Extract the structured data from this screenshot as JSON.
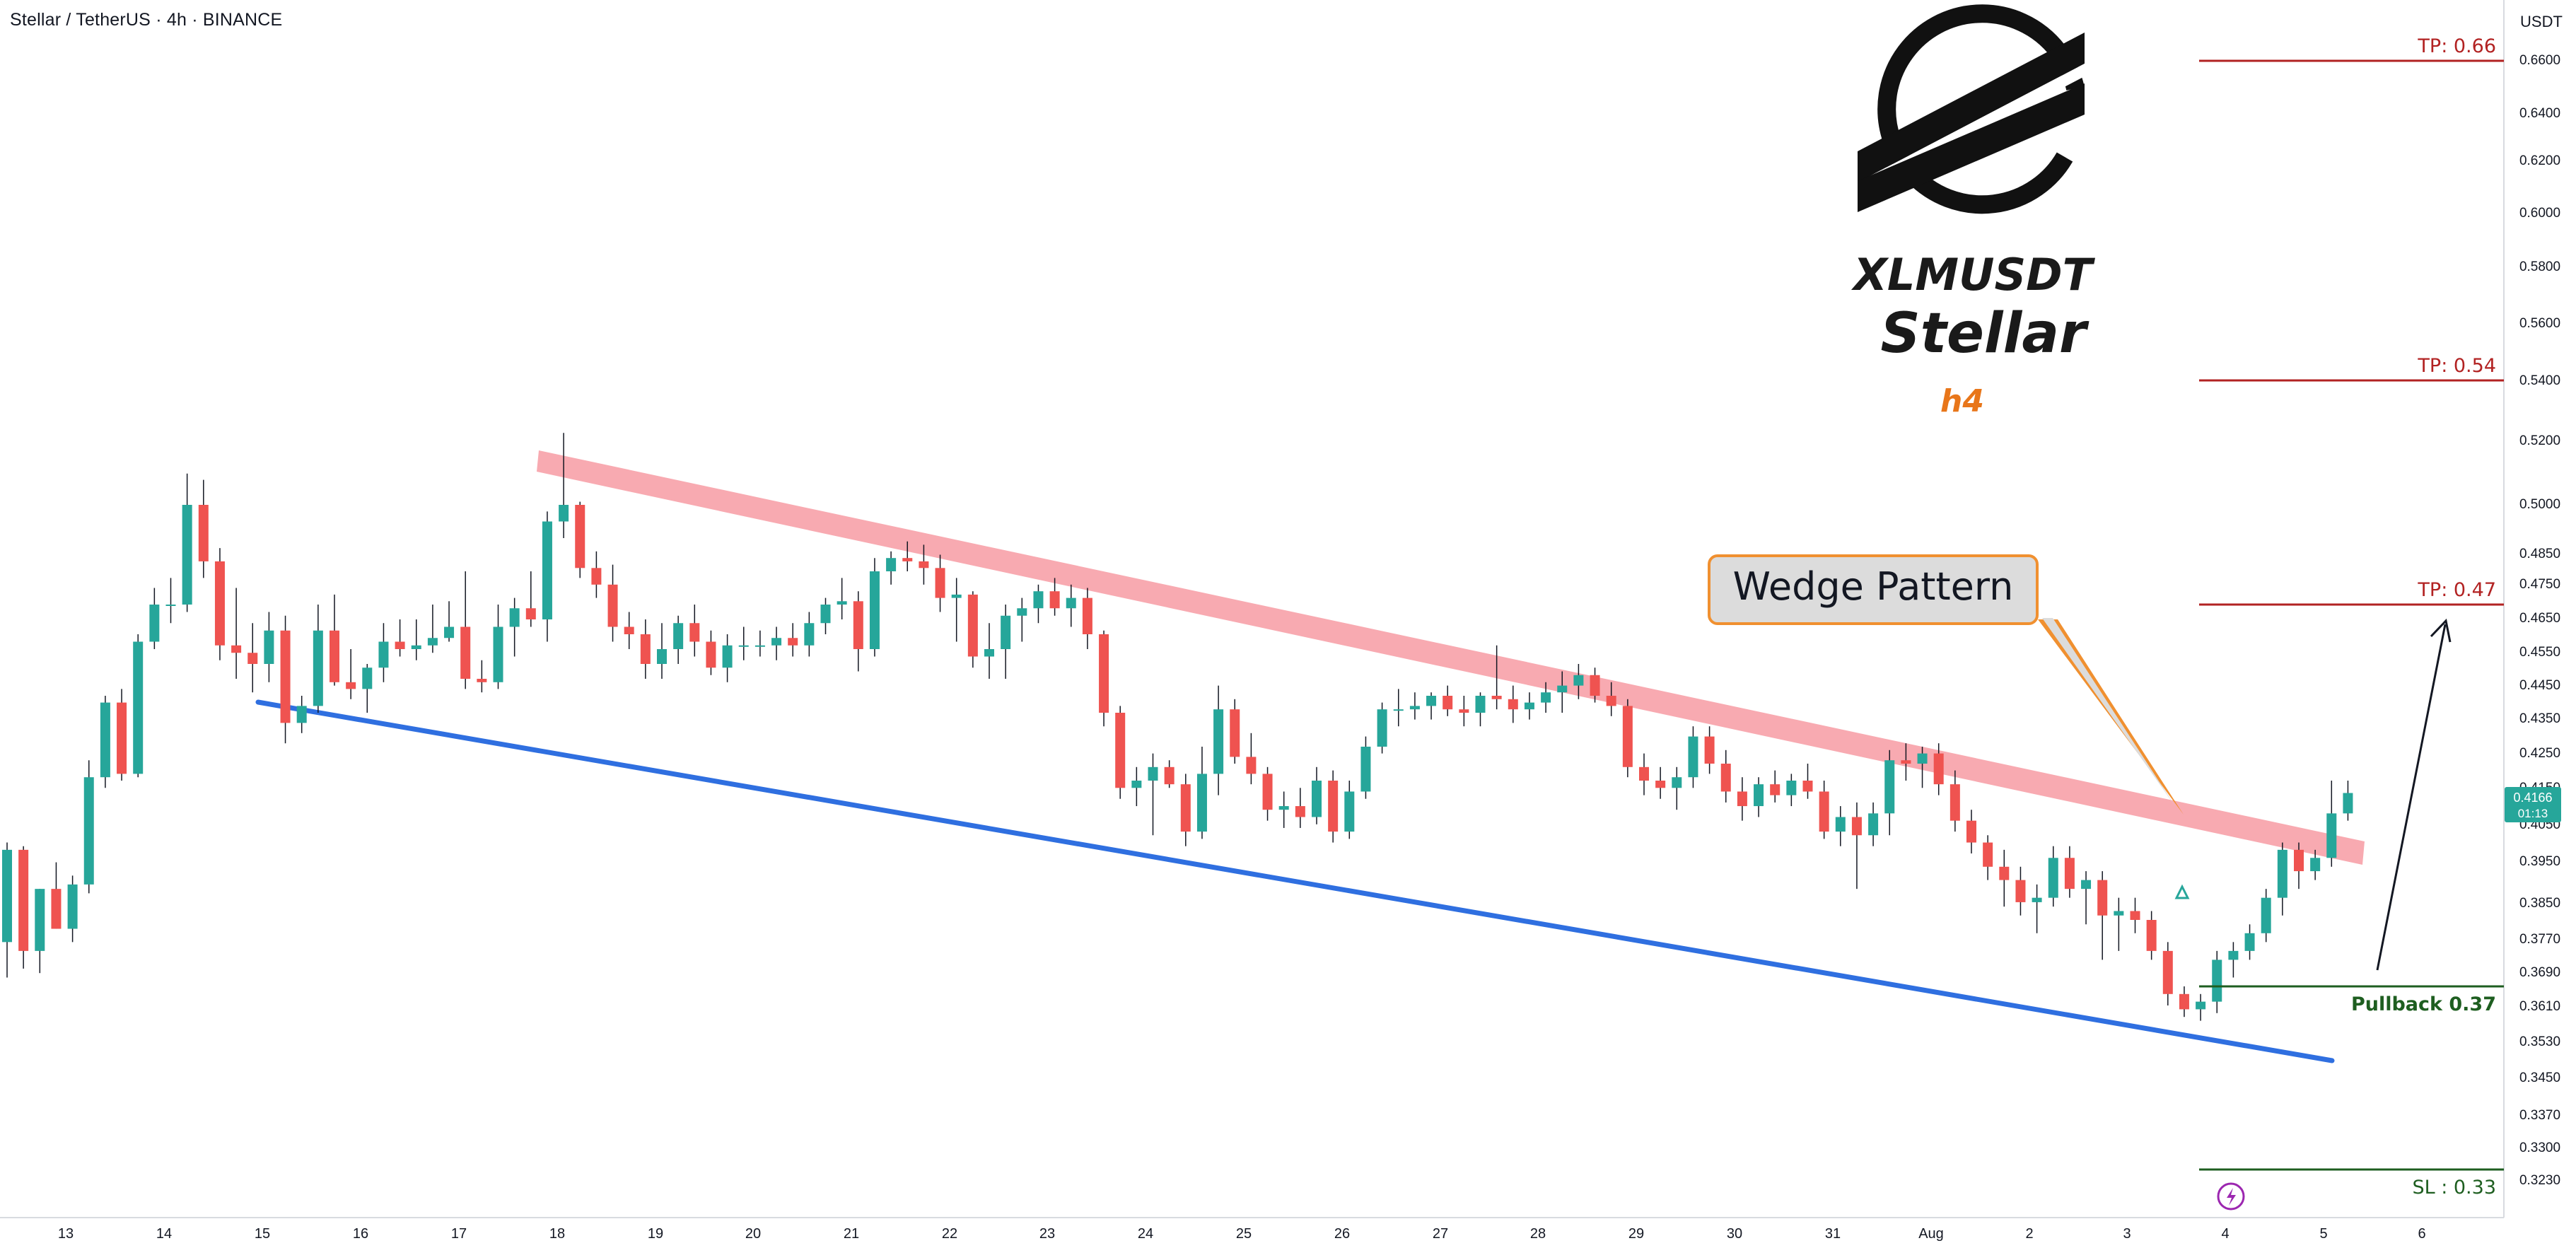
{
  "header": {
    "title": "Stellar / TetherUS · 4h · BINANCE"
  },
  "axis": {
    "unit_label": "USDT"
  },
  "branding": {
    "symbol": "XLMUSDT",
    "name": "Stellar",
    "timeframe": "h4"
  },
  "annotation": {
    "pattern_label": "Wedge Pattern"
  },
  "price_tag": {
    "price": "0.4166",
    "countdown": "01:13"
  },
  "levels": [
    {
      "label": "TP: 0.66",
      "price": 0.66,
      "color": "#b22222"
    },
    {
      "label": "TP: 0.54",
      "price": 0.54,
      "color": "#b22222"
    },
    {
      "label": "TP: 0.47",
      "price": 0.47,
      "color": "#b22222"
    },
    {
      "label": "Pullback 0.37",
      "price": 0.3705,
      "color": "#1e5e20"
    },
    {
      "label": "SL : 0.33",
      "price": 0.33,
      "color": "#1e5e20"
    }
  ],
  "colors": {
    "up": "#26a69a",
    "down": "#ef5350",
    "wedge_upper": "#f7a1a8",
    "wedge_lower": "#2f6fe0",
    "tp": "#b22222",
    "sl": "#1e5e20",
    "accent_orange": "#e8761a"
  },
  "chart_data": {
    "type": "candlestick",
    "title": "Stellar / TetherUS · 4h · BINANCE",
    "symbol": "XLMUSDT",
    "timeframe": "4h",
    "y_axis": {
      "label": "USDT",
      "scale": "log",
      "range": [
        0.319,
        0.675
      ],
      "ticks": [
        "0.6600",
        "0.6400",
        "0.6200",
        "0.6000",
        "0.5800",
        "0.5600",
        "0.5400",
        "0.5200",
        "0.5000",
        "0.4850",
        "0.4750",
        "0.4650",
        "0.4550",
        "0.4450",
        "0.4350",
        "0.4250",
        "0.4150",
        "0.4050",
        "0.3950",
        "0.3850",
        "0.3770",
        "0.3690",
        "0.3610",
        "0.3530",
        "0.3450",
        "0.3370",
        "0.3300",
        "0.3230"
      ]
    },
    "x_axis": {
      "range": [
        12.33,
        6.55
      ],
      "ticks": [
        "13",
        "14",
        "15",
        "16",
        "17",
        "18",
        "19",
        "20",
        "21",
        "22",
        "23",
        "24",
        "25",
        "26",
        "27",
        "28",
        "29",
        "30",
        "31",
        "Aug",
        "2",
        "3",
        "4",
        "5",
        "6"
      ]
    },
    "candles": [
      {
        "o": 0.38,
        "h": 0.403,
        "l": 0.372,
        "c": 0.401
      },
      {
        "o": 0.401,
        "h": 0.402,
        "l": 0.374,
        "c": 0.378
      },
      {
        "o": 0.378,
        "h": 0.392,
        "l": 0.373,
        "c": 0.392
      },
      {
        "o": 0.392,
        "h": 0.398,
        "l": 0.383,
        "c": 0.383
      },
      {
        "o": 0.383,
        "h": 0.395,
        "l": 0.38,
        "c": 0.393
      },
      {
        "o": 0.393,
        "h": 0.426,
        "l": 0.391,
        "c": 0.421
      },
      {
        "o": 0.421,
        "h": 0.445,
        "l": 0.418,
        "c": 0.443
      },
      {
        "o": 0.443,
        "h": 0.447,
        "l": 0.42,
        "c": 0.422
      },
      {
        "o": 0.422,
        "h": 0.462,
        "l": 0.421,
        "c": 0.46
      },
      {
        "o": 0.46,
        "h": 0.475,
        "l": 0.458,
        "c": 0.47
      },
      {
        "o": 0.47,
        "h": 0.478,
        "l": 0.465,
        "c": 0.47
      },
      {
        "o": 0.47,
        "h": 0.51,
        "l": 0.468,
        "c": 0.5
      },
      {
        "o": 0.5,
        "h": 0.508,
        "l": 0.478,
        "c": 0.483
      },
      {
        "o": 0.483,
        "h": 0.487,
        "l": 0.455,
        "c": 0.459
      },
      {
        "o": 0.459,
        "h": 0.475,
        "l": 0.45,
        "c": 0.457
      },
      {
        "o": 0.457,
        "h": 0.465,
        "l": 0.446,
        "c": 0.454
      },
      {
        "o": 0.454,
        "h": 0.468,
        "l": 0.449,
        "c": 0.463
      },
      {
        "o": 0.463,
        "h": 0.467,
        "l": 0.431,
        "c": 0.437
      },
      {
        "o": 0.437,
        "h": 0.445,
        "l": 0.434,
        "c": 0.442
      },
      {
        "o": 0.442,
        "h": 0.47,
        "l": 0.44,
        "c": 0.463
      },
      {
        "o": 0.463,
        "h": 0.473,
        "l": 0.448,
        "c": 0.449
      },
      {
        "o": 0.449,
        "h": 0.458,
        "l": 0.444,
        "c": 0.447
      },
      {
        "o": 0.447,
        "h": 0.454,
        "l": 0.44,
        "c": 0.453
      },
      {
        "o": 0.453,
        "h": 0.465,
        "l": 0.449,
        "c": 0.46
      },
      {
        "o": 0.46,
        "h": 0.466,
        "l": 0.456,
        "c": 0.458
      },
      {
        "o": 0.458,
        "h": 0.466,
        "l": 0.455,
        "c": 0.459
      },
      {
        "o": 0.459,
        "h": 0.47,
        "l": 0.457,
        "c": 0.461
      },
      {
        "o": 0.461,
        "h": 0.471,
        "l": 0.46,
        "c": 0.464
      },
      {
        "o": 0.464,
        "h": 0.48,
        "l": 0.447,
        "c": 0.45
      },
      {
        "o": 0.45,
        "h": 0.455,
        "l": 0.446,
        "c": 0.449
      },
      {
        "o": 0.449,
        "h": 0.47,
        "l": 0.447,
        "c": 0.464
      },
      {
        "o": 0.464,
        "h": 0.472,
        "l": 0.456,
        "c": 0.469
      },
      {
        "o": 0.469,
        "h": 0.48,
        "l": 0.464,
        "c": 0.466
      },
      {
        "o": 0.466,
        "h": 0.498,
        "l": 0.46,
        "c": 0.495
      },
      {
        "o": 0.495,
        "h": 0.523,
        "l": 0.49,
        "c": 0.5
      },
      {
        "o": 0.5,
        "h": 0.501,
        "l": 0.478,
        "c": 0.481
      },
      {
        "o": 0.481,
        "h": 0.486,
        "l": 0.472,
        "c": 0.476
      },
      {
        "o": 0.476,
        "h": 0.482,
        "l": 0.46,
        "c": 0.464
      },
      {
        "o": 0.464,
        "h": 0.468,
        "l": 0.458,
        "c": 0.462
      },
      {
        "o": 0.462,
        "h": 0.466,
        "l": 0.45,
        "c": 0.454
      },
      {
        "o": 0.454,
        "h": 0.465,
        "l": 0.45,
        "c": 0.458
      },
      {
        "o": 0.458,
        "h": 0.467,
        "l": 0.454,
        "c": 0.465
      },
      {
        "o": 0.465,
        "h": 0.47,
        "l": 0.456,
        "c": 0.46
      },
      {
        "o": 0.46,
        "h": 0.463,
        "l": 0.451,
        "c": 0.453
      },
      {
        "o": 0.453,
        "h": 0.462,
        "l": 0.449,
        "c": 0.459
      },
      {
        "o": 0.459,
        "h": 0.464,
        "l": 0.455,
        "c": 0.459
      },
      {
        "o": 0.459,
        "h": 0.463,
        "l": 0.456,
        "c": 0.459
      },
      {
        "o": 0.459,
        "h": 0.464,
        "l": 0.455,
        "c": 0.461
      },
      {
        "o": 0.461,
        "h": 0.465,
        "l": 0.456,
        "c": 0.459
      },
      {
        "o": 0.459,
        "h": 0.468,
        "l": 0.456,
        "c": 0.465
      },
      {
        "o": 0.465,
        "h": 0.472,
        "l": 0.462,
        "c": 0.47
      },
      {
        "o": 0.47,
        "h": 0.478,
        "l": 0.466,
        "c": 0.471
      },
      {
        "o": 0.471,
        "h": 0.474,
        "l": 0.452,
        "c": 0.458
      },
      {
        "o": 0.458,
        "h": 0.484,
        "l": 0.456,
        "c": 0.48
      },
      {
        "o": 0.48,
        "h": 0.486,
        "l": 0.476,
        "c": 0.484
      },
      {
        "o": 0.484,
        "h": 0.489,
        "l": 0.48,
        "c": 0.483
      },
      {
        "o": 0.483,
        "h": 0.488,
        "l": 0.476,
        "c": 0.481
      },
      {
        "o": 0.481,
        "h": 0.485,
        "l": 0.468,
        "c": 0.472
      },
      {
        "o": 0.472,
        "h": 0.478,
        "l": 0.46,
        "c": 0.473
      },
      {
        "o": 0.473,
        "h": 0.474,
        "l": 0.453,
        "c": 0.456
      },
      {
        "o": 0.456,
        "h": 0.465,
        "l": 0.45,
        "c": 0.458
      },
      {
        "o": 0.458,
        "h": 0.47,
        "l": 0.45,
        "c": 0.467
      },
      {
        "o": 0.467,
        "h": 0.472,
        "l": 0.46,
        "c": 0.469
      },
      {
        "o": 0.469,
        "h": 0.476,
        "l": 0.465,
        "c": 0.474
      },
      {
        "o": 0.474,
        "h": 0.478,
        "l": 0.467,
        "c": 0.469
      },
      {
        "o": 0.469,
        "h": 0.476,
        "l": 0.464,
        "c": 0.472
      },
      {
        "o": 0.472,
        "h": 0.475,
        "l": 0.458,
        "c": 0.462
      },
      {
        "o": 0.462,
        "h": 0.463,
        "l": 0.436,
        "c": 0.44
      },
      {
        "o": 0.44,
        "h": 0.442,
        "l": 0.415,
        "c": 0.418
      },
      {
        "o": 0.418,
        "h": 0.424,
        "l": 0.413,
        "c": 0.42
      },
      {
        "o": 0.42,
        "h": 0.428,
        "l": 0.405,
        "c": 0.424
      },
      {
        "o": 0.424,
        "h": 0.426,
        "l": 0.418,
        "c": 0.419
      },
      {
        "o": 0.419,
        "h": 0.422,
        "l": 0.402,
        "c": 0.406
      },
      {
        "o": 0.406,
        "h": 0.43,
        "l": 0.404,
        "c": 0.422
      },
      {
        "o": 0.422,
        "h": 0.448,
        "l": 0.416,
        "c": 0.441
      },
      {
        "o": 0.441,
        "h": 0.444,
        "l": 0.425,
        "c": 0.427
      },
      {
        "o": 0.427,
        "h": 0.434,
        "l": 0.419,
        "c": 0.422
      },
      {
        "o": 0.422,
        "h": 0.424,
        "l": 0.409,
        "c": 0.412
      },
      {
        "o": 0.412,
        "h": 0.417,
        "l": 0.407,
        "c": 0.413
      },
      {
        "o": 0.413,
        "h": 0.418,
        "l": 0.407,
        "c": 0.41
      },
      {
        "o": 0.41,
        "h": 0.424,
        "l": 0.408,
        "c": 0.42
      },
      {
        "o": 0.42,
        "h": 0.423,
        "l": 0.403,
        "c": 0.406
      },
      {
        "o": 0.406,
        "h": 0.42,
        "l": 0.404,
        "c": 0.417
      },
      {
        "o": 0.417,
        "h": 0.433,
        "l": 0.415,
        "c": 0.43
      },
      {
        "o": 0.43,
        "h": 0.443,
        "l": 0.428,
        "c": 0.441
      },
      {
        "o": 0.441,
        "h": 0.447,
        "l": 0.436,
        "c": 0.441
      },
      {
        "o": 0.441,
        "h": 0.446,
        "l": 0.438,
        "c": 0.442
      },
      {
        "o": 0.442,
        "h": 0.446,
        "l": 0.438,
        "c": 0.445
      },
      {
        "o": 0.445,
        "h": 0.448,
        "l": 0.439,
        "c": 0.441
      },
      {
        "o": 0.441,
        "h": 0.445,
        "l": 0.436,
        "c": 0.44
      },
      {
        "o": 0.44,
        "h": 0.446,
        "l": 0.436,
        "c": 0.445
      },
      {
        "o": 0.445,
        "h": 0.459,
        "l": 0.441,
        "c": 0.444
      },
      {
        "o": 0.444,
        "h": 0.448,
        "l": 0.437,
        "c": 0.441
      },
      {
        "o": 0.441,
        "h": 0.446,
        "l": 0.438,
        "c": 0.443
      },
      {
        "o": 0.443,
        "h": 0.449,
        "l": 0.44,
        "c": 0.446
      },
      {
        "o": 0.446,
        "h": 0.452,
        "l": 0.44,
        "c": 0.448
      },
      {
        "o": 0.448,
        "h": 0.454,
        "l": 0.444,
        "c": 0.451
      },
      {
        "o": 0.451,
        "h": 0.453,
        "l": 0.443,
        "c": 0.445
      },
      {
        "o": 0.445,
        "h": 0.449,
        "l": 0.439,
        "c": 0.442
      },
      {
        "o": 0.442,
        "h": 0.444,
        "l": 0.421,
        "c": 0.424
      },
      {
        "o": 0.424,
        "h": 0.428,
        "l": 0.416,
        "c": 0.42
      },
      {
        "o": 0.42,
        "h": 0.424,
        "l": 0.415,
        "c": 0.418
      },
      {
        "o": 0.418,
        "h": 0.424,
        "l": 0.412,
        "c": 0.421
      },
      {
        "o": 0.421,
        "h": 0.436,
        "l": 0.418,
        "c": 0.433
      },
      {
        "o": 0.433,
        "h": 0.436,
        "l": 0.422,
        "c": 0.425
      },
      {
        "o": 0.425,
        "h": 0.429,
        "l": 0.414,
        "c": 0.417
      },
      {
        "o": 0.417,
        "h": 0.421,
        "l": 0.409,
        "c": 0.413
      },
      {
        "o": 0.413,
        "h": 0.421,
        "l": 0.41,
        "c": 0.419
      },
      {
        "o": 0.419,
        "h": 0.423,
        "l": 0.414,
        "c": 0.416
      },
      {
        "o": 0.416,
        "h": 0.422,
        "l": 0.413,
        "c": 0.42
      },
      {
        "o": 0.42,
        "h": 0.425,
        "l": 0.415,
        "c": 0.417
      },
      {
        "o": 0.417,
        "h": 0.42,
        "l": 0.404,
        "c": 0.406
      },
      {
        "o": 0.406,
        "h": 0.413,
        "l": 0.402,
        "c": 0.41
      },
      {
        "o": 0.41,
        "h": 0.414,
        "l": 0.392,
        "c": 0.405
      },
      {
        "o": 0.405,
        "h": 0.414,
        "l": 0.402,
        "c": 0.411
      },
      {
        "o": 0.411,
        "h": 0.429,
        "l": 0.405,
        "c": 0.426
      },
      {
        "o": 0.426,
        "h": 0.431,
        "l": 0.42,
        "c": 0.425
      },
      {
        "o": 0.425,
        "h": 0.43,
        "l": 0.418,
        "c": 0.428
      },
      {
        "o": 0.428,
        "h": 0.431,
        "l": 0.416,
        "c": 0.419
      },
      {
        "o": 0.419,
        "h": 0.423,
        "l": 0.406,
        "c": 0.409
      },
      {
        "o": 0.409,
        "h": 0.412,
        "l": 0.4,
        "c": 0.403
      },
      {
        "o": 0.403,
        "h": 0.405,
        "l": 0.394,
        "c": 0.397
      },
      {
        "o": 0.397,
        "h": 0.401,
        "l": 0.388,
        "c": 0.394
      },
      {
        "o": 0.394,
        "h": 0.397,
        "l": 0.386,
        "c": 0.389
      },
      {
        "o": 0.389,
        "h": 0.393,
        "l": 0.382,
        "c": 0.39
      },
      {
        "o": 0.39,
        "h": 0.402,
        "l": 0.388,
        "c": 0.399
      },
      {
        "o": 0.399,
        "h": 0.402,
        "l": 0.39,
        "c": 0.392
      },
      {
        "o": 0.392,
        "h": 0.396,
        "l": 0.384,
        "c": 0.394
      },
      {
        "o": 0.394,
        "h": 0.396,
        "l": 0.376,
        "c": 0.386
      },
      {
        "o": 0.386,
        "h": 0.39,
        "l": 0.378,
        "c": 0.387
      },
      {
        "o": 0.387,
        "h": 0.39,
        "l": 0.382,
        "c": 0.385
      },
      {
        "o": 0.385,
        "h": 0.387,
        "l": 0.376,
        "c": 0.378
      },
      {
        "o": 0.378,
        "h": 0.38,
        "l": 0.365,
        "c": 0.368
      },
      {
        "o": 0.368,
        "h": 0.37,
        "l": 0.362,
        "c": 0.364
      },
      {
        "o": 0.364,
        "h": 0.368,
        "l": 0.361,
        "c": 0.366
      },
      {
        "o": 0.366,
        "h": 0.378,
        "l": 0.363,
        "c": 0.376
      },
      {
        "o": 0.376,
        "h": 0.38,
        "l": 0.372,
        "c": 0.378
      },
      {
        "o": 0.378,
        "h": 0.384,
        "l": 0.376,
        "c": 0.382
      },
      {
        "o": 0.382,
        "h": 0.392,
        "l": 0.38,
        "c": 0.39
      },
      {
        "o": 0.39,
        "h": 0.403,
        "l": 0.386,
        "c": 0.401
      },
      {
        "o": 0.401,
        "h": 0.403,
        "l": 0.392,
        "c": 0.396
      },
      {
        "o": 0.396,
        "h": 0.401,
        "l": 0.394,
        "c": 0.399
      },
      {
        "o": 0.399,
        "h": 0.42,
        "l": 0.397,
        "c": 0.411
      },
      {
        "o": 0.411,
        "h": 0.42,
        "l": 0.409,
        "c": 0.4166
      }
    ]
  }
}
